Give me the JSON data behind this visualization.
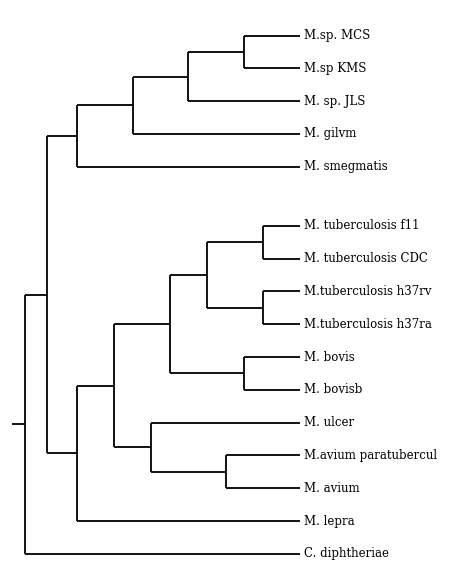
{
  "background_color": "#ffffff",
  "line_color": "#000000",
  "lw": 1.3,
  "fontsize": 8.5,
  "taxa_labels": [
    "M.sp. MCS",
    "M.sp KMS",
    "M. sp. JLS",
    "M. gilvm",
    "M. smegmatis",
    "M. tuberculosis f11",
    "M. tuberculosis CDC",
    "M.tuberculosis h37rv",
    "M.tuberculosis h37ra",
    "M. bovis",
    "M. bovisb",
    "M. ulcer",
    "M.avium paratubercul",
    "M. avium",
    "M. lepra",
    "C. diphtheriae"
  ],
  "y_MCS": 16.0,
  "y_KMS": 15.0,
  "y_JLS": 14.0,
  "y_gilvm": 13.0,
  "y_smeg": 12.0,
  "y_tb_f11": 10.2,
  "y_tb_CDC": 9.2,
  "y_h37rv": 8.2,
  "y_h37ra": 7.2,
  "y_bovis": 6.2,
  "y_bovisb": 5.2,
  "y_ulcer": 4.2,
  "y_avium_p": 3.2,
  "y_avium": 2.2,
  "y_lepra": 1.2,
  "y_cdip": 0.2,
  "leaf_x": 7.5,
  "xlim": [
    -0.5,
    12.0
  ],
  "ylim": [
    -0.3,
    17.0
  ]
}
